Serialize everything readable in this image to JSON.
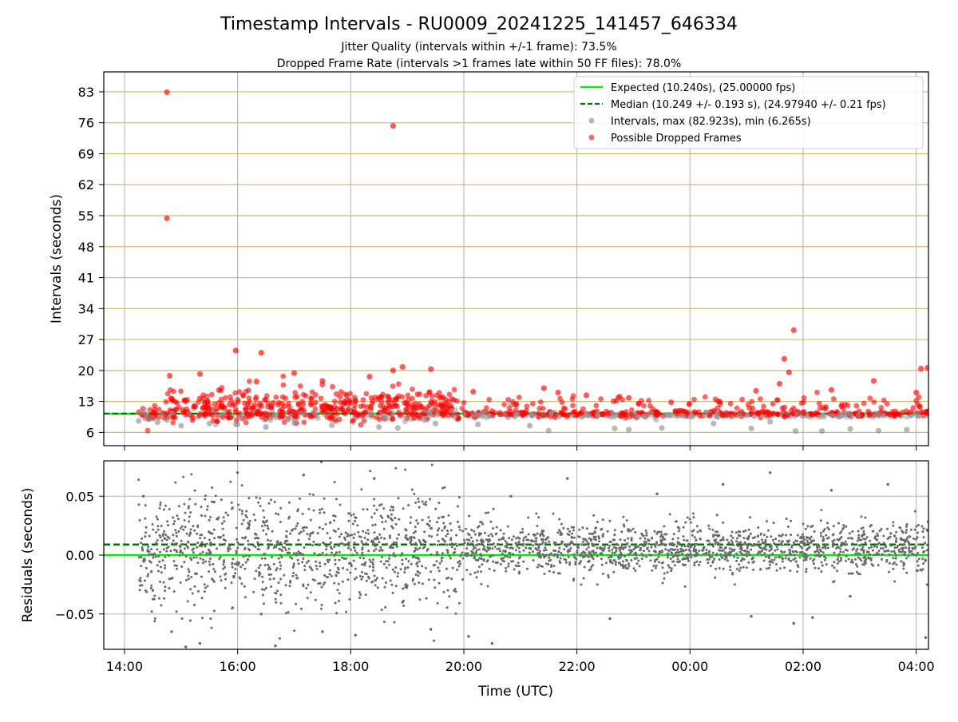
{
  "chart_data": [
    {
      "type": "scatter",
      "title": "Timestamp Intervals - RU0009_20241225_141457_646334",
      "subtitle_lines": [
        "Jitter Quality (intervals within +/-1 frame): 73.5%",
        "Dropped Frame Rate (intervals >1 frames late within 50 FF files): 78.0%"
      ],
      "xlabel": "",
      "ylabel": "Intervals (seconds)",
      "ylim": [
        3,
        87.5
      ],
      "xlim": [
        "2024-12-25 13:38",
        "2024-12-26 04:13"
      ],
      "yticks": [
        "6",
        "13",
        "20",
        "27",
        "34",
        "41",
        "48",
        "55",
        "62",
        "69",
        "76",
        "83"
      ],
      "grid": true,
      "legend_position": "top-right",
      "legend": [
        "Expected (10.240s), (25.00000 fps)",
        "Median (10.249 +/- 0.193 s), (24.97940 +/- 0.21 fps)",
        "Intervals, max (82.923s), min (6.265s)",
        "Possible Dropped Frames"
      ],
      "reference_lines": [
        {
          "name": "Expected",
          "y": 10.24,
          "style": "solid",
          "color": "#00ee00"
        },
        {
          "name": "Median",
          "y": 10.249,
          "style": "dashed",
          "color": "#007700"
        }
      ],
      "series": [
        {
          "name": "Intervals",
          "color": "#888888",
          "points": [
            {
              "x": "2024-12-25 14:15",
              "y": 8.6
            },
            {
              "x": "2024-12-25 14:25",
              "y": 9.1
            },
            {
              "x": "2024-12-25 14:35",
              "y": 8.3
            },
            {
              "x": "2024-12-25 14:45",
              "y": 8.8
            },
            {
              "x": "2024-12-25 15:00",
              "y": 7.5
            },
            {
              "x": "2024-12-25 15:30",
              "y": 8.0
            },
            {
              "x": "2024-12-25 16:00",
              "y": 7.8
            },
            {
              "x": "2024-12-25 16:30",
              "y": 7.2
            },
            {
              "x": "2024-12-25 17:00",
              "y": 8.1
            },
            {
              "x": "2024-12-25 17:40",
              "y": 7.6
            },
            {
              "x": "2024-12-25 18:30",
              "y": 7.2
            },
            {
              "x": "2024-12-25 18:50",
              "y": 7.0
            },
            {
              "x": "2024-12-25 19:30",
              "y": 8.0
            },
            {
              "x": "2024-12-25 20:15",
              "y": 7.8
            },
            {
              "x": "2024-12-25 20:50",
              "y": 12.2
            },
            {
              "x": "2024-12-25 21:10",
              "y": 7.5
            },
            {
              "x": "2024-12-25 21:30",
              "y": 6.4
            },
            {
              "x": "2024-12-25 22:40",
              "y": 6.9
            },
            {
              "x": "2024-12-25 22:55",
              "y": 6.6
            },
            {
              "x": "2024-12-25 23:30",
              "y": 7.0
            },
            {
              "x": "2024-12-26 00:25",
              "y": 8.0
            },
            {
              "x": "2024-12-26 01:05",
              "y": 6.9
            },
            {
              "x": "2024-12-26 01:25",
              "y": 8.4
            },
            {
              "x": "2024-12-26 01:52",
              "y": 6.3
            },
            {
              "x": "2024-12-26 02:20",
              "y": 6.3
            },
            {
              "x": "2024-12-26 02:50",
              "y": 6.8
            },
            {
              "x": "2024-12-26 03:20",
              "y": 6.4
            },
            {
              "x": "2024-12-26 03:50",
              "y": 6.6
            }
          ]
        },
        {
          "name": "Possible Dropped Frames",
          "color": "#ff0000",
          "points": [
            {
              "x": "2024-12-25 14:45",
              "y": 82.9
            },
            {
              "x": "2024-12-25 14:45",
              "y": 54.4
            },
            {
              "x": "2024-12-25 18:45",
              "y": 75.3
            },
            {
              "x": "2024-12-25 15:58",
              "y": 24.5
            },
            {
              "x": "2024-12-25 16:25",
              "y": 24.0
            },
            {
              "x": "2024-12-25 14:48",
              "y": 18.8
            },
            {
              "x": "2024-12-25 15:20",
              "y": 19.2
            },
            {
              "x": "2024-12-25 16:20",
              "y": 17.5
            },
            {
              "x": "2024-12-25 17:00",
              "y": 19.4
            },
            {
              "x": "2024-12-25 17:30",
              "y": 17.6
            },
            {
              "x": "2024-12-25 18:20",
              "y": 18.6
            },
            {
              "x": "2024-12-25 18:45",
              "y": 20.0
            },
            {
              "x": "2024-12-25 18:55",
              "y": 20.8
            },
            {
              "x": "2024-12-25 19:25",
              "y": 20.3
            },
            {
              "x": "2024-12-25 20:10",
              "y": 15.2
            },
            {
              "x": "2024-12-25 21:25",
              "y": 16.0
            },
            {
              "x": "2024-12-25 21:40",
              "y": 15.0
            },
            {
              "x": "2024-12-25 22:10",
              "y": 14.4
            },
            {
              "x": "2024-12-25 22:55",
              "y": 13.8
            },
            {
              "x": "2024-12-25 23:40",
              "y": 12.8
            },
            {
              "x": "2024-12-26 00:30",
              "y": 13.0
            },
            {
              "x": "2024-12-26 01:10",
              "y": 15.4
            },
            {
              "x": "2024-12-26 01:35",
              "y": 17.0
            },
            {
              "x": "2024-12-26 01:40",
              "y": 22.6
            },
            {
              "x": "2024-12-26 01:45",
              "y": 19.6
            },
            {
              "x": "2024-12-26 01:50",
              "y": 29.1
            },
            {
              "x": "2024-12-26 02:30",
              "y": 15.6
            },
            {
              "x": "2024-12-26 03:15",
              "y": 17.6
            },
            {
              "x": "2024-12-26 04:05",
              "y": 20.4
            },
            {
              "x": "2024-12-26 04:12",
              "y": 20.6
            },
            {
              "x": "2024-12-26 04:00",
              "y": 15.0
            }
          ]
        }
      ]
    },
    {
      "type": "scatter",
      "title": "",
      "xlabel": "Time (UTC)",
      "ylabel": "Residuals (seconds)",
      "ylim": [
        -0.08,
        0.08
      ],
      "xlim": [
        "2024-12-25 13:38",
        "2024-12-26 04:13"
      ],
      "yticks": [
        "0.05",
        "0.00",
        "−0.05"
      ],
      "xticks": [
        "14:00",
        "16:00",
        "18:00",
        "20:00",
        "22:00",
        "00:00",
        "02:00",
        "04:00"
      ],
      "grid": true,
      "reference_lines": [
        {
          "name": "Expected",
          "y": 0.0,
          "style": "solid",
          "color": "#00ee00"
        },
        {
          "name": "Median",
          "y": 0.009,
          "style": "dashed",
          "color": "#007700"
        }
      ],
      "series": [
        {
          "name": "Residuals",
          "color": "#666666",
          "points": [
            {
              "x": "2024-12-25 14:20",
              "y": 0.05
            },
            {
              "x": "2024-12-25 14:30",
              "y": -0.03
            },
            {
              "x": "2024-12-25 14:50",
              "y": -0.065
            },
            {
              "x": "2024-12-25 15:05",
              "y": -0.078
            },
            {
              "x": "2024-12-25 15:20",
              "y": -0.075
            },
            {
              "x": "2024-12-25 15:35",
              "y": 0.045
            },
            {
              "x": "2024-12-25 16:00",
              "y": 0.07
            },
            {
              "x": "2024-12-25 16:25",
              "y": -0.05
            },
            {
              "x": "2024-12-25 16:40",
              "y": -0.077
            },
            {
              "x": "2024-12-25 17:10",
              "y": 0.068
            },
            {
              "x": "2024-12-25 17:30",
              "y": -0.065
            },
            {
              "x": "2024-12-25 18:05",
              "y": -0.068
            },
            {
              "x": "2024-12-25 18:25",
              "y": 0.065
            },
            {
              "x": "2024-12-25 18:55",
              "y": -0.04
            },
            {
              "x": "2024-12-25 19:25",
              "y": -0.063
            },
            {
              "x": "2024-12-25 20:05",
              "y": -0.069
            },
            {
              "x": "2024-12-25 20:30",
              "y": -0.075
            },
            {
              "x": "2024-12-25 20:50",
              "y": 0.05
            },
            {
              "x": "2024-12-25 21:50",
              "y": 0.065
            },
            {
              "x": "2024-12-25 22:35",
              "y": -0.054
            },
            {
              "x": "2024-12-25 23:25",
              "y": 0.052
            },
            {
              "x": "2024-12-26 00:35",
              "y": 0.06
            },
            {
              "x": "2024-12-26 01:05",
              "y": -0.052
            },
            {
              "x": "2024-12-26 01:25",
              "y": 0.07
            },
            {
              "x": "2024-12-26 01:50",
              "y": -0.058
            },
            {
              "x": "2024-12-26 02:10",
              "y": -0.053
            },
            {
              "x": "2024-12-26 02:30",
              "y": 0.055
            },
            {
              "x": "2024-12-26 02:50",
              "y": -0.035
            },
            {
              "x": "2024-12-26 03:30",
              "y": 0.06
            },
            {
              "x": "2024-12-26 04:10",
              "y": -0.07
            }
          ]
        }
      ]
    }
  ]
}
